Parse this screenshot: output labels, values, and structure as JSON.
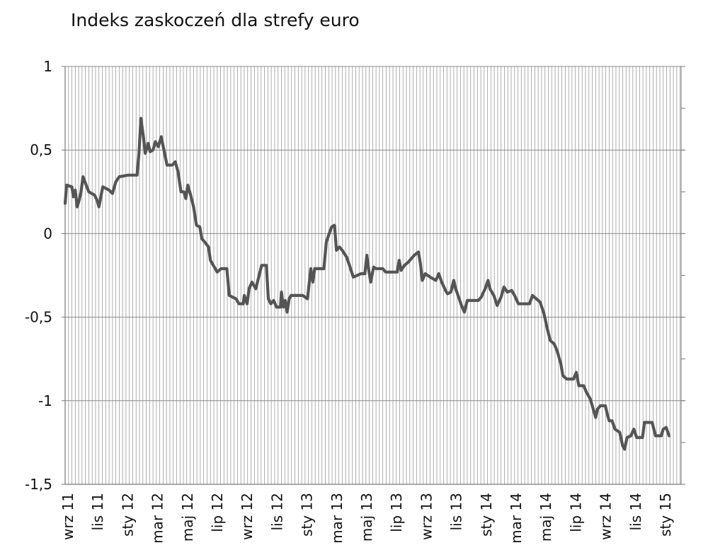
{
  "chart_data": {
    "type": "line",
    "title": "Indeks zaskoczeń dla strefy euro",
    "xlabel": "",
    "ylabel": "",
    "ylim": [
      -1.5,
      1
    ],
    "yticks": [
      {
        "value": 1,
        "label": "1"
      },
      {
        "value": 0.5,
        "label": "0,5"
      },
      {
        "value": 0,
        "label": "0"
      },
      {
        "value": -0.5,
        "label": "-0,5"
      },
      {
        "value": -1,
        "label": "-1"
      },
      {
        "value": -1.5,
        "label": "-1,5"
      }
    ],
    "x_tick_labels": [
      "wrz 11",
      "lis 11",
      "sty 12",
      "mar 12",
      "maj 12",
      "lip 12",
      "wrz 12",
      "lis 12",
      "sty 13",
      "mar 13",
      "maj 13",
      "lip 13",
      "wrz 13",
      "lis 13",
      "sty 14",
      "mar 14",
      "maj 14",
      "lip 14",
      "wrz 14",
      "lis 14",
      "sty 15"
    ],
    "x_start": "2011-09-01",
    "x_end": "2015-02-28",
    "grid": true,
    "legend": "none",
    "line_color": "#555555",
    "series": [
      {
        "points": [
          [
            "2011-09-01",
            0.18
          ],
          [
            "2011-09-04",
            0.29
          ],
          [
            "2011-09-15",
            0.28
          ],
          [
            "2011-09-18",
            0.22
          ],
          [
            "2011-09-22",
            0.26
          ],
          [
            "2011-09-26",
            0.16
          ],
          [
            "2011-09-30",
            0.2
          ],
          [
            "2011-10-04",
            0.25
          ],
          [
            "2011-10-08",
            0.34
          ],
          [
            "2011-10-20",
            0.25
          ],
          [
            "2011-11-01",
            0.23
          ],
          [
            "2011-11-06",
            0.2
          ],
          [
            "2011-11-10",
            0.16
          ],
          [
            "2011-11-18",
            0.28
          ],
          [
            "2011-12-01",
            0.26
          ],
          [
            "2011-12-08",
            0.24
          ],
          [
            "2011-12-15",
            0.31
          ],
          [
            "2011-12-22",
            0.34
          ],
          [
            "2012-01-10",
            0.35
          ],
          [
            "2012-01-28",
            0.35
          ],
          [
            "2012-02-01",
            0.48
          ],
          [
            "2012-02-05",
            0.69
          ],
          [
            "2012-02-10",
            0.58
          ],
          [
            "2012-02-14",
            0.48
          ],
          [
            "2012-02-20",
            0.54
          ],
          [
            "2012-02-24",
            0.49
          ],
          [
            "2012-03-01",
            0.5
          ],
          [
            "2012-03-06",
            0.55
          ],
          [
            "2012-03-12",
            0.52
          ],
          [
            "2012-03-18",
            0.58
          ],
          [
            "2012-03-25",
            0.48
          ],
          [
            "2012-03-30",
            0.41
          ],
          [
            "2012-04-10",
            0.41
          ],
          [
            "2012-04-16",
            0.43
          ],
          [
            "2012-04-22",
            0.37
          ],
          [
            "2012-04-28",
            0.25
          ],
          [
            "2012-05-04",
            0.25
          ],
          [
            "2012-05-08",
            0.21
          ],
          [
            "2012-05-12",
            0.29
          ],
          [
            "2012-05-18",
            0.23
          ],
          [
            "2012-05-24",
            0.16
          ],
          [
            "2012-05-30",
            0.05
          ],
          [
            "2012-06-06",
            0.04
          ],
          [
            "2012-06-10",
            -0.03
          ],
          [
            "2012-06-16",
            -0.05
          ],
          [
            "2012-06-24",
            -0.08
          ],
          [
            "2012-06-28",
            -0.16
          ],
          [
            "2012-07-06",
            -0.2
          ],
          [
            "2012-07-12",
            -0.23
          ],
          [
            "2012-07-20",
            -0.21
          ],
          [
            "2012-08-01",
            -0.21
          ],
          [
            "2012-08-06",
            -0.37
          ],
          [
            "2012-08-20",
            -0.39
          ],
          [
            "2012-08-26",
            -0.42
          ],
          [
            "2012-09-04",
            -0.42
          ],
          [
            "2012-09-06",
            -0.37
          ],
          [
            "2012-09-12",
            -0.42
          ],
          [
            "2012-09-16",
            -0.33
          ],
          [
            "2012-09-22",
            -0.29
          ],
          [
            "2012-09-30",
            -0.33
          ],
          [
            "2012-10-06",
            -0.26
          ],
          [
            "2012-10-12",
            -0.19
          ],
          [
            "2012-10-22",
            -0.19
          ],
          [
            "2012-10-26",
            -0.39
          ],
          [
            "2012-10-31",
            -0.42
          ],
          [
            "2012-11-06",
            -0.4
          ],
          [
            "2012-11-12",
            -0.44
          ],
          [
            "2012-11-20",
            -0.44
          ],
          [
            "2012-11-22",
            -0.35
          ],
          [
            "2012-11-26",
            -0.44
          ],
          [
            "2012-11-30",
            -0.4
          ],
          [
            "2012-12-04",
            -0.47
          ],
          [
            "2012-12-08",
            -0.39
          ],
          [
            "2012-12-12",
            -0.37
          ],
          [
            "2012-12-22",
            -0.37
          ],
          [
            "2013-01-05",
            -0.37
          ],
          [
            "2013-01-15",
            -0.39
          ],
          [
            "2013-01-22",
            -0.21
          ],
          [
            "2013-01-26",
            -0.29
          ],
          [
            "2013-01-30",
            -0.21
          ],
          [
            "2013-02-18",
            -0.21
          ],
          [
            "2013-02-23",
            -0.05
          ],
          [
            "2013-03-01",
            0.0
          ],
          [
            "2013-03-06",
            0.04
          ],
          [
            "2013-03-12",
            0.05
          ],
          [
            "2013-03-16",
            -0.1
          ],
          [
            "2013-03-22",
            -0.08
          ],
          [
            "2013-03-28",
            -0.1
          ],
          [
            "2013-04-06",
            -0.14
          ],
          [
            "2013-04-12",
            -0.19
          ],
          [
            "2013-04-20",
            -0.26
          ],
          [
            "2013-05-06",
            -0.24
          ],
          [
            "2013-05-14",
            -0.24
          ],
          [
            "2013-05-18",
            -0.13
          ],
          [
            "2013-05-22",
            -0.22
          ],
          [
            "2013-05-26",
            -0.29
          ],
          [
            "2013-06-01",
            -0.2
          ],
          [
            "2013-06-06",
            -0.21
          ],
          [
            "2013-06-20",
            -0.21
          ],
          [
            "2013-06-26",
            -0.23
          ],
          [
            "2013-07-20",
            -0.23
          ],
          [
            "2013-07-24",
            -0.16
          ],
          [
            "2013-07-28",
            -0.22
          ],
          [
            "2013-08-04",
            -0.19
          ],
          [
            "2013-08-12",
            -0.17
          ],
          [
            "2013-08-24",
            -0.13
          ],
          [
            "2013-09-02",
            -0.11
          ],
          [
            "2013-09-06",
            -0.18
          ],
          [
            "2013-09-10",
            -0.28
          ],
          [
            "2013-09-16",
            -0.24
          ],
          [
            "2013-09-26",
            -0.26
          ],
          [
            "2013-10-08",
            -0.28
          ],
          [
            "2013-10-14",
            -0.24
          ],
          [
            "2013-10-20",
            -0.29
          ],
          [
            "2013-10-28",
            -0.34
          ],
          [
            "2013-11-01",
            -0.36
          ],
          [
            "2013-11-08",
            -0.35
          ],
          [
            "2013-11-14",
            -0.28
          ],
          [
            "2013-11-18",
            -0.33
          ],
          [
            "2013-11-24",
            -0.38
          ],
          [
            "2013-11-30",
            -0.43
          ],
          [
            "2013-12-06",
            -0.47
          ],
          [
            "2013-12-12",
            -0.4
          ],
          [
            "2014-01-04",
            -0.4
          ],
          [
            "2014-01-10",
            -0.38
          ],
          [
            "2014-01-18",
            -0.33
          ],
          [
            "2014-01-24",
            -0.28
          ],
          [
            "2014-01-28",
            -0.33
          ],
          [
            "2014-02-05",
            -0.37
          ],
          [
            "2014-02-12",
            -0.43
          ],
          [
            "2014-02-20",
            -0.38
          ],
          [
            "2014-02-26",
            -0.32
          ],
          [
            "2014-03-05",
            -0.35
          ],
          [
            "2014-03-14",
            -0.34
          ],
          [
            "2014-03-20",
            -0.37
          ],
          [
            "2014-03-28",
            -0.42
          ],
          [
            "2014-04-20",
            -0.42
          ],
          [
            "2014-04-26",
            -0.37
          ],
          [
            "2014-05-04",
            -0.39
          ],
          [
            "2014-05-12",
            -0.41
          ],
          [
            "2014-05-20",
            -0.48
          ],
          [
            "2014-05-26",
            -0.56
          ],
          [
            "2014-06-02",
            -0.64
          ],
          [
            "2014-06-10",
            -0.66
          ],
          [
            "2014-06-16",
            -0.7
          ],
          [
            "2014-06-24",
            -0.78
          ],
          [
            "2014-06-28",
            -0.85
          ],
          [
            "2014-07-06",
            -0.87
          ],
          [
            "2014-07-20",
            -0.87
          ],
          [
            "2014-07-26",
            -0.83
          ],
          [
            "2014-07-31",
            -0.91
          ],
          [
            "2014-08-10",
            -0.91
          ],
          [
            "2014-08-16",
            -0.95
          ],
          [
            "2014-08-24",
            -0.99
          ],
          [
            "2014-08-30",
            -1.05
          ],
          [
            "2014-09-04",
            -1.1
          ],
          [
            "2014-09-08",
            -1.05
          ],
          [
            "2014-09-14",
            -1.03
          ],
          [
            "2014-09-24",
            -1.03
          ],
          [
            "2014-09-28",
            -1.08
          ],
          [
            "2014-10-02",
            -1.12
          ],
          [
            "2014-10-08",
            -1.12
          ],
          [
            "2014-10-14",
            -1.17
          ],
          [
            "2014-10-24",
            -1.19
          ],
          [
            "2014-10-30",
            -1.27
          ],
          [
            "2014-11-03",
            -1.29
          ],
          [
            "2014-11-08",
            -1.22
          ],
          [
            "2014-11-16",
            -1.21
          ],
          [
            "2014-11-22",
            -1.17
          ],
          [
            "2014-11-28",
            -1.22
          ],
          [
            "2014-12-10",
            -1.22
          ],
          [
            "2014-12-14",
            -1.13
          ],
          [
            "2014-12-30",
            -1.13
          ],
          [
            "2015-01-06",
            -1.21
          ],
          [
            "2015-01-18",
            -1.21
          ],
          [
            "2015-01-22",
            -1.17
          ],
          [
            "2015-01-28",
            -1.16
          ],
          [
            "2015-02-03",
            -1.21
          ]
        ]
      }
    ]
  }
}
